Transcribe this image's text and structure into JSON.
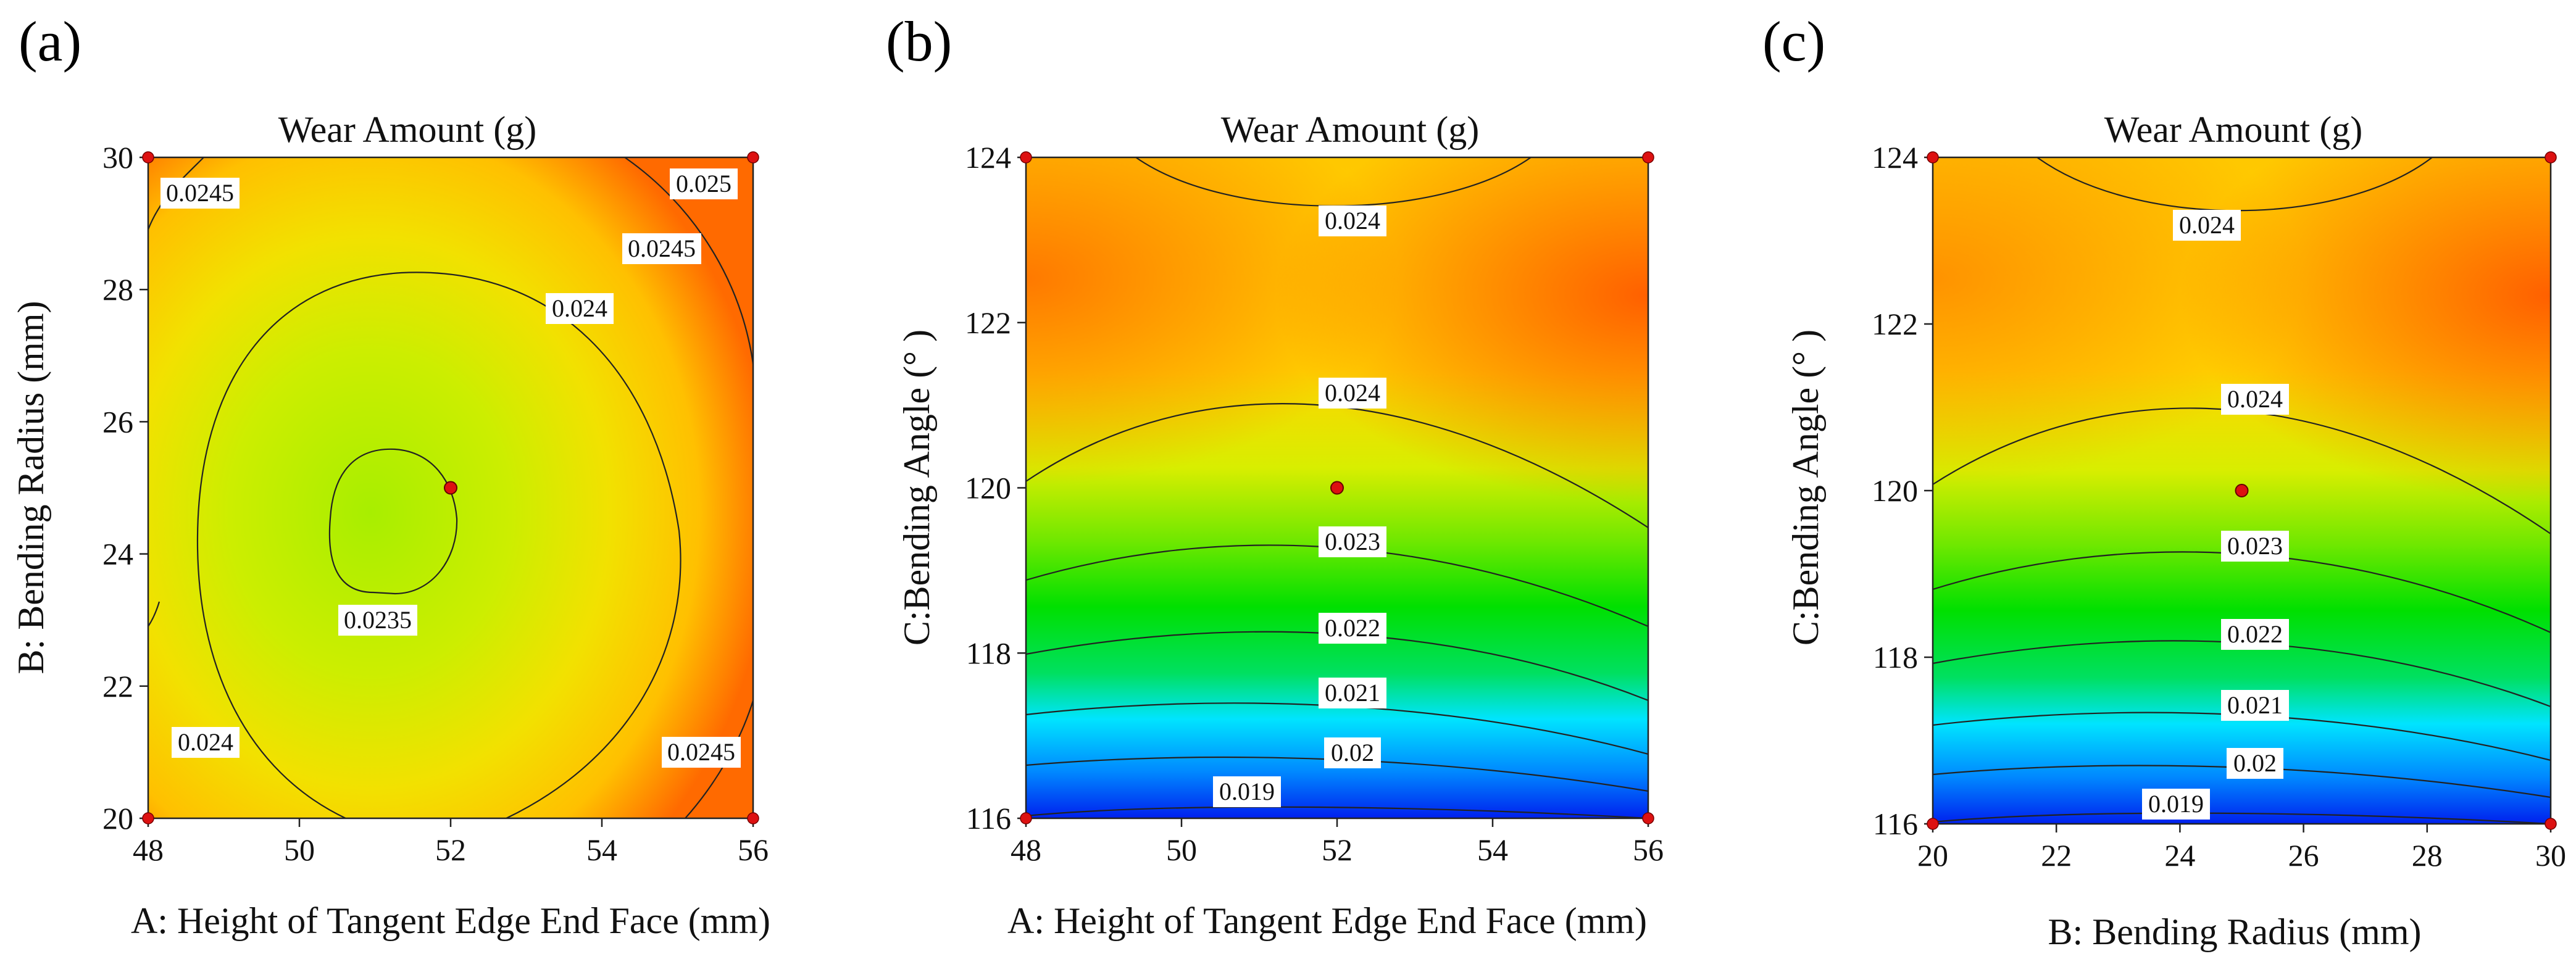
{
  "chart_data": [
    {
      "id": "a",
      "panel_label": "(a)",
      "type": "contour",
      "title": "Wear Amount (g)",
      "xlabel": "A: Height of Tangent Edge End Face (mm)",
      "ylabel": "B: Bending Radius (mm)",
      "xlim": [
        48,
        56
      ],
      "ylim": [
        20,
        30
      ],
      "xticks": [
        "48",
        "50",
        "52",
        "54",
        "56"
      ],
      "yticks": [
        "20",
        "22",
        "24",
        "26",
        "28",
        "30"
      ],
      "center_point": [
        52,
        25
      ],
      "design_points": [
        [
          48,
          20
        ],
        [
          56,
          20
        ],
        [
          48,
          30
        ],
        [
          56,
          30
        ]
      ],
      "contour_labels": [
        "0.0245",
        "0.025",
        "0.0245",
        "0.024",
        "0.0235",
        "0.024",
        "0.0245"
      ]
    },
    {
      "id": "b",
      "panel_label": "(b)",
      "type": "contour",
      "title": "Wear Amount (g)",
      "xlabel": "A: Height of Tangent Edge End Face (mm)",
      "ylabel": "C:Bending Angle (° )",
      "xlim": [
        48,
        56
      ],
      "ylim": [
        116,
        124
      ],
      "xticks": [
        "48",
        "50",
        "52",
        "54",
        "56"
      ],
      "yticks": [
        "116",
        "118",
        "120",
        "122",
        "124"
      ],
      "center_point": [
        52,
        120
      ],
      "design_points": [
        [
          48,
          116
        ],
        [
          56,
          116
        ],
        [
          48,
          124
        ],
        [
          56,
          124
        ]
      ],
      "contour_labels": [
        "0.024",
        "0.024",
        "0.023",
        "0.022",
        "0.021",
        "0.02",
        "0.019"
      ]
    },
    {
      "id": "c",
      "panel_label": "(c)",
      "type": "contour",
      "title": "Wear Amount (g)",
      "xlabel": "B: Bending Radius (mm)",
      "ylabel": "C:Bending Angle (° )",
      "xlim": [
        20,
        30
      ],
      "ylim": [
        116,
        124
      ],
      "xticks": [
        "20",
        "22",
        "24",
        "26",
        "28",
        "30"
      ],
      "yticks": [
        "116",
        "118",
        "120",
        "122",
        "124"
      ],
      "center_point": [
        25,
        120
      ],
      "design_points": [
        [
          20,
          116
        ],
        [
          30,
          116
        ],
        [
          20,
          124
        ],
        [
          30,
          124
        ]
      ],
      "contour_labels": [
        "0.024",
        "0.024",
        "0.023",
        "0.022",
        "0.021",
        "0.02",
        "0.019"
      ]
    }
  ],
  "colors": {
    "orange": "#ff6a00",
    "yellow": "#ffd400",
    "lime": "#a8ee00",
    "green": "#00e000",
    "cyan": "#00e4ff",
    "blue": "#0030ff",
    "point": "#dd1111"
  }
}
